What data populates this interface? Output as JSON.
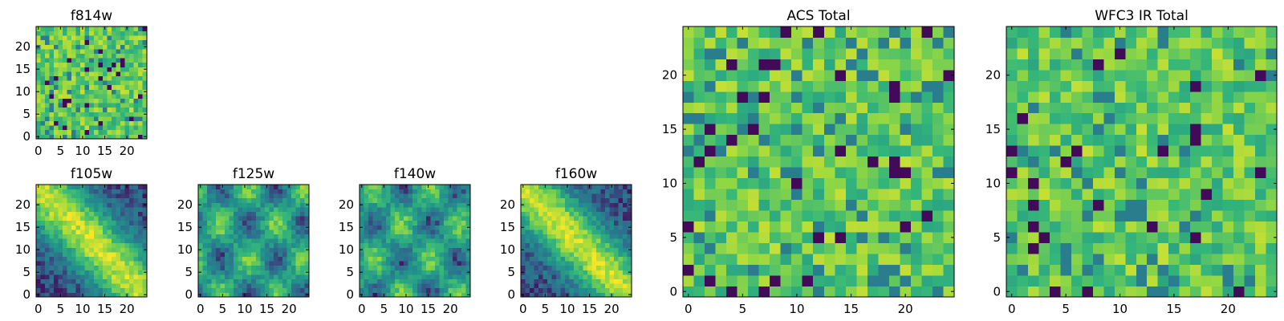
{
  "colors": {
    "background": "#ffffff",
    "axes_edge": "#000000",
    "colormap": [
      "#440154",
      "#31688e",
      "#21918c",
      "#35b779",
      "#90d743",
      "#fde725"
    ]
  },
  "chart_data": [
    {
      "id": "f814w",
      "type": "heatmap",
      "title": "f814w",
      "grid_size": 25,
      "xlim": [
        -0.5,
        24.5
      ],
      "ylim": [
        -0.5,
        24.5
      ],
      "xticks": [
        0,
        5,
        10,
        15,
        20
      ],
      "yticks": [
        0,
        5,
        10,
        15,
        20
      ],
      "pattern": "noise",
      "seed": 11
    },
    {
      "id": "f105w",
      "type": "heatmap",
      "title": "f105w",
      "grid_size": 25,
      "xlim": [
        -0.5,
        24.5
      ],
      "ylim": [
        -0.5,
        24.5
      ],
      "xticks": [
        0,
        5,
        10,
        15,
        20
      ],
      "yticks": [
        0,
        5,
        10,
        15,
        20
      ],
      "pattern": "diagonal",
      "seed": 23
    },
    {
      "id": "f125w",
      "type": "heatmap",
      "title": "f125w",
      "grid_size": 25,
      "xlim": [
        -0.5,
        24.5
      ],
      "ylim": [
        -0.5,
        24.5
      ],
      "xticks": [
        0,
        5,
        10,
        15,
        20
      ],
      "yticks": [
        0,
        5,
        10,
        15,
        20
      ],
      "pattern": "smooth",
      "seed": 37
    },
    {
      "id": "f140w",
      "type": "heatmap",
      "title": "f140w",
      "grid_size": 25,
      "xlim": [
        -0.5,
        24.5
      ],
      "ylim": [
        -0.5,
        24.5
      ],
      "xticks": [
        0,
        5,
        10,
        15,
        20
      ],
      "yticks": [
        0,
        5,
        10,
        15,
        20
      ],
      "pattern": "smooth",
      "seed": 41
    },
    {
      "id": "f160w",
      "type": "heatmap",
      "title": "f160w",
      "grid_size": 25,
      "xlim": [
        -0.5,
        24.5
      ],
      "ylim": [
        -0.5,
        24.5
      ],
      "xticks": [
        0,
        5,
        10,
        15,
        20
      ],
      "yticks": [
        0,
        5,
        10,
        15,
        20
      ],
      "pattern": "diagonal",
      "seed": 53
    },
    {
      "id": "acs-total",
      "type": "heatmap",
      "title": "ACS Total",
      "grid_size": 25,
      "xlim": [
        -0.5,
        24.5
      ],
      "ylim": [
        -0.5,
        24.5
      ],
      "xticks": [
        0,
        5,
        10,
        15,
        20
      ],
      "yticks": [
        0,
        5,
        10,
        15,
        20
      ],
      "pattern": "noise",
      "seed": 67
    },
    {
      "id": "wfc3-ir-total",
      "type": "heatmap",
      "title": "WFC3 IR Total",
      "grid_size": 25,
      "xlim": [
        -0.5,
        24.5
      ],
      "ylim": [
        -0.5,
        24.5
      ],
      "xticks": [
        0,
        5,
        10,
        15,
        20
      ],
      "yticks": [
        0,
        5,
        10,
        15,
        20
      ],
      "pattern": "noise",
      "seed": 79
    }
  ]
}
